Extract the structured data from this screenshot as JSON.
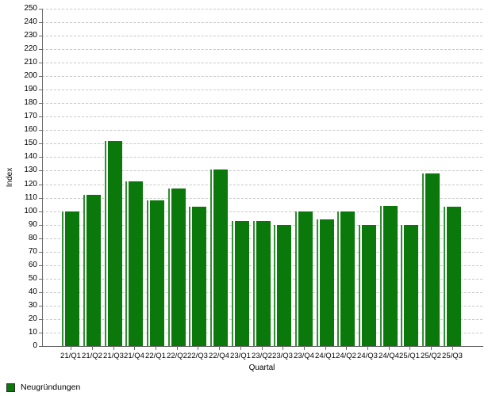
{
  "chart_data": {
    "type": "bar",
    "title": "",
    "xlabel": "Quartal",
    "ylabel": "Index",
    "categories": [
      "21/Q1",
      "21/Q2",
      "21/Q3",
      "21/Q4",
      "22/Q1",
      "22/Q2",
      "22/Q3",
      "22/Q4",
      "23/Q1",
      "23/Q2",
      "23/Q3",
      "23/Q4",
      "24/Q1",
      "24/Q2",
      "24/Q3",
      "24/Q4",
      "25/Q1",
      "25/Q2",
      "25/Q3"
    ],
    "series": [
      {
        "name": "Neugründungen",
        "values": [
          100,
          112,
          152,
          122,
          108,
          117,
          103,
          131,
          93,
          93,
          90,
          100,
          94,
          100,
          90,
          104,
          90,
          128,
          103
        ]
      }
    ],
    "ylim": [
      0,
      250
    ],
    "ytick_step": 10,
    "grid": "horizontal-dashed",
    "legend_position": "bottom-left"
  },
  "colors": {
    "bar_fill": "#0b780b",
    "bar_stripe": "#2e8f2e",
    "gap": "#ffffff",
    "grid": "#c8c8c8",
    "axis": "#6b6b6b",
    "text": "#000000"
  }
}
